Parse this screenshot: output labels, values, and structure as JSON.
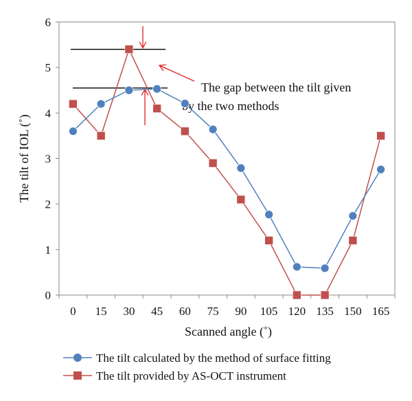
{
  "chart_data": {
    "type": "line",
    "title": "",
    "xlabel": "Scanned angle (˚)",
    "ylabel": "The tilt of IOL (˚)",
    "categories": [
      "0",
      "15",
      "30",
      "45",
      "60",
      "75",
      "90",
      "105",
      "120",
      "135",
      "150",
      "165"
    ],
    "ylim": [
      0,
      6
    ],
    "yticks": [
      "0",
      "1",
      "2",
      "3",
      "4",
      "5",
      "6"
    ],
    "grid": false,
    "legend_position": "bottom",
    "series": [
      {
        "name": "The tilt calculated by the method of surface fitting",
        "color": "#4F81BD",
        "marker": "circle",
        "values": [
          3.6,
          4.2,
          4.5,
          4.53,
          4.21,
          3.64,
          2.79,
          1.77,
          0.62,
          0.59,
          1.74,
          2.76
        ]
      },
      {
        "name": "The tilt provided by AS-OCT instrument",
        "color": "#C0504D",
        "marker": "square",
        "values": [
          4.2,
          3.5,
          5.4,
          4.1,
          3.6,
          2.9,
          2.1,
          1.2,
          0,
          0,
          1.2,
          3.5
        ]
      }
    ],
    "annotation": {
      "text_line1": "The gap between the tilt given",
      "text_line2": "by the two methods",
      "arrow_color": "#E02020",
      "line_color": "#000000",
      "upper_level": 5.4,
      "lower_level": 4.55
    }
  }
}
